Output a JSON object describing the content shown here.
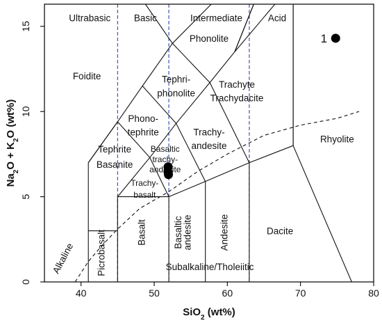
{
  "chart_data": {
    "type": "scatter",
    "title": "",
    "xlabel": "SiO₂ (wt%)",
    "ylabel": "Na₂O + K₂O (wt%)",
    "xlim": [
      35,
      80
    ],
    "ylim": [
      0,
      16.3
    ],
    "xticks": [
      40,
      50,
      60,
      70,
      80
    ],
    "yticks": [
      0,
      5,
      10,
      15
    ],
    "grid": false,
    "legend": "none",
    "points": [
      {
        "x": 51.9,
        "y": 6.75
      },
      {
        "x": 51.9,
        "y": 6.45
      },
      {
        "x": 51.95,
        "y": 6.3
      },
      {
        "x": 74.8,
        "y": 14.3,
        "label": "1"
      }
    ],
    "silica_divisions": [
      {
        "label": "Ultrabasic",
        "x": 45
      },
      {
        "label": "Basic",
        "x": 52
      },
      {
        "label": "Intermediate",
        "x": 63
      },
      {
        "label": "Acid",
        "x": null
      }
    ],
    "boundaries": [
      [
        [
          41,
          0
        ],
        [
          41,
          7
        ],
        [
          45,
          9.4
        ],
        [
          48.4,
          11.5
        ],
        [
          52.5,
          14
        ],
        [
          52.5,
          14
        ]
      ],
      [
        [
          41,
          3
        ],
        [
          45,
          3
        ]
      ],
      [
        [
          45,
          0
        ],
        [
          45,
          5
        ],
        [
          52,
          5
        ],
        [
          57,
          5.9
        ],
        [
          63,
          7
        ],
        [
          69,
          8
        ]
      ],
      [
        [
          52,
          0
        ],
        [
          52,
          5
        ]
      ],
      [
        [
          57,
          0
        ],
        [
          57,
          5.9
        ]
      ],
      [
        [
          63,
          0
        ],
        [
          63,
          7
        ]
      ],
      [
        [
          69,
          8
        ],
        [
          69,
          16.3
        ]
      ],
      [
        [
          69,
          8
        ],
        [
          77,
          0
        ]
      ],
      [
        [
          45,
          5
        ],
        [
          49.4,
          7.3
        ],
        [
          53,
          9.3
        ],
        [
          57.6,
          11.7
        ],
        [
          61,
          13.5
        ],
        [
          63.6,
          16.3
        ]
      ],
      [
        [
          52,
          5
        ],
        [
          49.4,
          7.3
        ],
        [
          45,
          9.4
        ]
      ],
      [
        [
          57,
          5.9
        ],
        [
          53,
          9.3
        ],
        [
          48.4,
          11.5
        ]
      ],
      [
        [
          63,
          7
        ],
        [
          57.6,
          11.7
        ],
        [
          52.5,
          14
        ],
        [
          52.5,
          14
        ]
      ],
      [
        [
          52.5,
          14
        ],
        [
          48.8,
          16.3
        ]
      ],
      [
        [
          52.5,
          14
        ],
        [
          57.8,
          16.3
        ]
      ],
      [
        [
          61,
          13.5
        ],
        [
          63.6,
          16.3
        ]
      ],
      [
        [
          41,
          7
        ],
        [
          45,
          9.4
        ]
      ],
      [
        [
          69,
          8
        ],
        [
          69,
          16.3
        ]
      ],
      [
        [
          63.6,
          16.3
        ],
        [
          66.5,
          16.3
        ]
      ],
      [
        [
          61,
          13.5
        ],
        [
          66.5,
          16.3
        ]
      ]
    ],
    "silica_dash_lines": [
      45,
      52,
      63
    ],
    "alkaline_subalkaline_curve": [
      [
        39.2,
        0
      ],
      [
        41,
        1.2
      ],
      [
        43,
        2.2
      ],
      [
        45,
        3.1
      ],
      [
        48,
        4.3
      ],
      [
        52,
        5.3
      ],
      [
        56,
        6.5
      ],
      [
        60,
        7.5
      ],
      [
        65,
        8.6
      ],
      [
        70,
        9.2
      ],
      [
        75,
        9.6
      ],
      [
        78,
        10
      ]
    ],
    "fields": [
      {
        "label": "Foidite",
        "x": 40.8,
        "y": 12.1
      },
      {
        "label": "Phonolite",
        "x": 57.5,
        "y": 14.3
      },
      {
        "label": "Tephri-",
        "x": 53.0,
        "y": 11.9
      },
      {
        "label": "phonolite",
        "x": 53.0,
        "y": 11.1
      },
      {
        "label": "Trachyte",
        "x": 61.3,
        "y": 11.6
      },
      {
        "label": "Trachydacite",
        "x": 61.3,
        "y": 10.8
      },
      {
        "label": "Phono-",
        "x": 48.5,
        "y": 9.6
      },
      {
        "label": "tephrite",
        "x": 48.5,
        "y": 8.8
      },
      {
        "label": "Trachy-",
        "x": 57.5,
        "y": 8.8
      },
      {
        "label": "andesite",
        "x": 57.5,
        "y": 8.0
      },
      {
        "label": "Tephrite",
        "x": 44.6,
        "y": 7.8
      },
      {
        "label": "Basanite",
        "x": 44.6,
        "y": 6.9
      },
      {
        "label": "Rhyolite",
        "x": 75.0,
        "y": 8.4
      },
      {
        "label": "Dacite",
        "x": 67.2,
        "y": 3.0
      },
      {
        "label": "Subalkaline/Tholeiitic",
        "x": 57.6,
        "y": 0.9
      },
      {
        "label": "Alkaline",
        "x": 37.9,
        "y": 1.5
      }
    ],
    "small_fields": [
      {
        "label": "Basaltic",
        "x": 51.5,
        "y": 7.8
      },
      {
        "label": "trachy-",
        "x": 51.5,
        "y": 7.2
      },
      {
        "label": "andesite",
        "x": 51.5,
        "y": 6.6
      },
      {
        "label": "Trachy-",
        "x": 48.7,
        "y": 5.8
      },
      {
        "label": "basalt",
        "x": 48.7,
        "y": 5.1
      }
    ],
    "rotated_fields": [
      {
        "label": "Picrobasalt",
        "x": 43.2,
        "y": 1.7
      },
      {
        "label": "Basalt",
        "x": 48.7,
        "y": 2.9
      },
      {
        "label": "Basaltic",
        "x": 53.7,
        "y": 2.9
      },
      {
        "label": "andesite",
        "x": 55.0,
        "y": 2.9
      },
      {
        "label": "Andesite",
        "x": 60.0,
        "y": 2.9
      }
    ],
    "point_label": {
      "text": "1",
      "x": 73.2,
      "y": 14.3
    }
  }
}
